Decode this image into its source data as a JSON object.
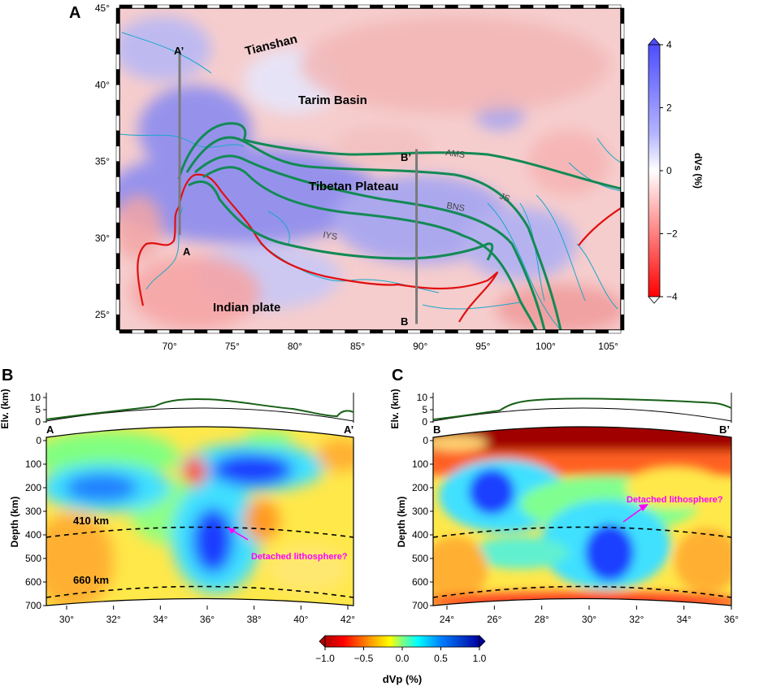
{
  "panels": {
    "a": "A",
    "b": "B",
    "c": "C"
  },
  "map": {
    "lat_ticks": [
      "45°",
      "40°",
      "35°",
      "30°",
      "25°"
    ],
    "lon_ticks": [
      "70°",
      "75°",
      "80°",
      "85°",
      "90°",
      "95°",
      "100°",
      "105°"
    ],
    "lon_range": [
      66,
      106
    ],
    "lat_range": [
      24,
      45
    ],
    "labels": {
      "tianshan": "Tianshan",
      "tarim": "Tarim Basin",
      "tibet": "Tibetan Plateau",
      "india": "Indian plate",
      "ams": "AMS",
      "js": "JS",
      "bns": "BNS",
      "iys": "IYS",
      "a": "A",
      "a_prime": "A’",
      "b": "B",
      "b_prime": "B’"
    },
    "profile_aa": {
      "lon": 70.8,
      "lat_start": 30.2,
      "lat_end": 42.2
    },
    "profile_bb": {
      "lon": 89.7,
      "lat_start": 24.4,
      "lat_end": 35.8
    },
    "colorbar": {
      "label": "dVs (%)",
      "ticks": [
        "4",
        "2",
        "0",
        "−2",
        "−4"
      ],
      "colors": [
        "#ff0000",
        "#ffffff",
        "#4d4dff"
      ]
    }
  },
  "sections": {
    "elev_label": "Elv. (km)",
    "elev_ticks": [
      "10",
      "5",
      "0"
    ],
    "depth_label": "Depth (km)",
    "depth_ticks": [
      "0",
      "100",
      "200",
      "300",
      "400",
      "500",
      "600",
      "700"
    ],
    "d410": "410 km",
    "d660": "660 km",
    "annotation": "Detached lithosphere?",
    "b_ends": [
      "A",
      "A’"
    ],
    "c_ends": [
      "B",
      "B’"
    ],
    "b_ticks": [
      "30°",
      "32°",
      "34°",
      "36°",
      "38°",
      "40°",
      "42°"
    ],
    "c_ticks": [
      "24°",
      "26°",
      "28°",
      "30°",
      "32°",
      "34°",
      "36°"
    ],
    "annotation_color": "#ff00ff"
  },
  "bottom_colorbar": {
    "label": "dVp (%)",
    "ticks": [
      "−1.0",
      "−0.5",
      "0.0",
      "0.5",
      "1.0"
    ]
  }
}
